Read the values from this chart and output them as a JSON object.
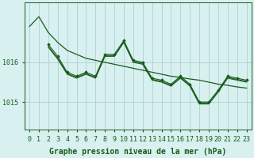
{
  "background_color": "#d8f0f0",
  "grid_color": "#a0cccc",
  "line_color": "#1a5c1a",
  "marker_color": "#1a5c1a",
  "xlabel": "Graphe pression niveau de la mer (hPa)",
  "xlabel_fontsize": 7,
  "tick_fontsize": 6,
  "yticks": [
    1015,
    1016
  ],
  "xlim": [
    -0.5,
    23.5
  ],
  "ylim": [
    1014.3,
    1017.5
  ],
  "line1": {
    "x": [
      0,
      1,
      2,
      3,
      4,
      5,
      6,
      7,
      8,
      9,
      10,
      11,
      12,
      13,
      14,
      15,
      16,
      17,
      18,
      19,
      20,
      21,
      22,
      23
    ],
    "y": [
      1016.9,
      1017.15,
      1016.75,
      1016.5,
      1016.3,
      1016.2,
      1016.1,
      1016.05,
      1016.0,
      1015.95,
      1015.9,
      1015.85,
      1015.8,
      1015.75,
      1015.7,
      1015.65,
      1015.62,
      1015.58,
      1015.55,
      1015.5,
      1015.45,
      1015.42,
      1015.38,
      1015.35
    ]
  },
  "line2": {
    "x": [
      2,
      3,
      4,
      5,
      6,
      7,
      8,
      9,
      10,
      11,
      12,
      13,
      14,
      15,
      16,
      17,
      18,
      19,
      20,
      21,
      22,
      23
    ],
    "y": [
      1016.45,
      1016.15,
      1015.75,
      1015.65,
      1015.75,
      1015.65,
      1016.2,
      1016.2,
      1016.55,
      1016.05,
      1016.0,
      1015.6,
      1015.55,
      1015.45,
      1015.65,
      1015.45,
      1015.0,
      1015.0,
      1015.3,
      1015.65,
      1015.6,
      1015.55
    ]
  },
  "line3": {
    "x": [
      2,
      3,
      4,
      5,
      6,
      7,
      8,
      9,
      10,
      11,
      12,
      13,
      14,
      15,
      16,
      17,
      18,
      19,
      20,
      21,
      22,
      23
    ],
    "y": [
      1016.4,
      1016.1,
      1015.72,
      1015.62,
      1015.72,
      1015.62,
      1016.17,
      1016.17,
      1016.52,
      1016.02,
      1015.97,
      1015.57,
      1015.52,
      1015.42,
      1015.62,
      1015.42,
      1014.97,
      1014.97,
      1015.27,
      1015.62,
      1015.57,
      1015.52
    ]
  },
  "line4": {
    "x": [
      2,
      3,
      4,
      5,
      6,
      7,
      8,
      9,
      10,
      11,
      12,
      13,
      14,
      15,
      16,
      17,
      18,
      19,
      20,
      21,
      22,
      23
    ],
    "y": [
      1016.38,
      1016.08,
      1015.7,
      1015.6,
      1015.7,
      1015.6,
      1016.15,
      1016.15,
      1016.5,
      1016.0,
      1015.95,
      1015.55,
      1015.5,
      1015.4,
      1015.6,
      1015.4,
      1014.95,
      1014.95,
      1015.25,
      1015.6,
      1015.55,
      1015.5
    ]
  }
}
